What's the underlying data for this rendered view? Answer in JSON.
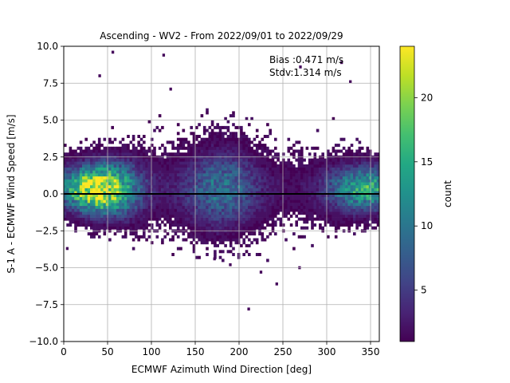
{
  "chart_data": {
    "type": "heatmap",
    "title": "Ascending - WV2 - From 2022/09/01 to 2022/09/29",
    "xlabel": "ECMWF Azimuth Wind Direction [deg]",
    "ylabel": "S-1 A - ECMWF Wind Speed [m/s]",
    "xlim": [
      0,
      360
    ],
    "ylim": [
      -10,
      10
    ],
    "xticks": [
      "0",
      "50",
      "100",
      "150",
      "200",
      "250",
      "300",
      "350"
    ],
    "yticks": [
      "−10.0",
      "−7.5",
      "−5.0",
      "−2.5",
      "0.0",
      "2.5",
      "5.0",
      "7.5",
      "10.0"
    ],
    "grid": true,
    "bin_width_deg": 3,
    "bin_height_ms": 0.2,
    "annotations": [
      "Bias :0.471 m/s",
      "Stdv:1.314 m/s"
    ],
    "reference_line_y": 0,
    "colorbar": {
      "label": "count",
      "min": 1,
      "max": 24,
      "ticks": [
        "5",
        "10",
        "15",
        "20"
      ],
      "colormap": "viridis"
    },
    "density_peaks": [
      {
        "x": 40,
        "y": 0.1,
        "count": 24
      },
      {
        "x": 345,
        "y": 0.1,
        "count": 14
      },
      {
        "x": 180,
        "y": 0.2,
        "count": 8
      }
    ],
    "outliers": [
      {
        "x": 56,
        "y": 9.6
      },
      {
        "x": 114,
        "y": 9.4
      },
      {
        "x": 41,
        "y": 8.0
      },
      {
        "x": 270,
        "y": 8.6
      },
      {
        "x": 317,
        "y": 8.9
      },
      {
        "x": 327,
        "y": 7.6
      },
      {
        "x": 122,
        "y": 7.1
      },
      {
        "x": 211,
        "y": -7.8
      },
      {
        "x": 243,
        "y": -6.1
      },
      {
        "x": 190,
        "y": -4.8
      },
      {
        "x": 4,
        "y": -3.7
      },
      {
        "x": 269,
        "y": -5.0
      },
      {
        "x": 225,
        "y": -5.3
      },
      {
        "x": 172,
        "y": -4.4
      }
    ]
  },
  "colors": {
    "zero_line": "#000000",
    "grid": "#b0b0b0",
    "background": "#ffffff"
  }
}
